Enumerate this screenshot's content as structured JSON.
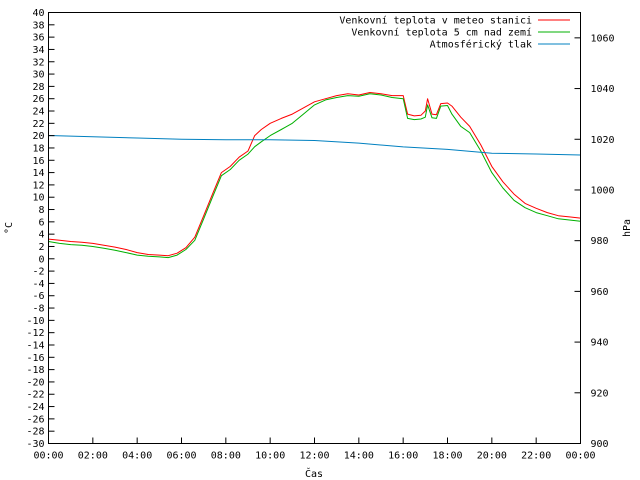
{
  "chart_data": {
    "type": "line",
    "title": "",
    "xlabel": "Čas",
    "ylabel": "°C",
    "y2label": "hPa",
    "xlim": [
      0,
      24
    ],
    "ylim": [
      -30,
      40
    ],
    "y2lim": [
      900,
      1070
    ],
    "grid": false,
    "legend_position": "top-right",
    "x_ticks": [
      {
        "v": 0,
        "label": "00:00"
      },
      {
        "v": 2,
        "label": "02:00"
      },
      {
        "v": 4,
        "label": "04:00"
      },
      {
        "v": 6,
        "label": "06:00"
      },
      {
        "v": 8,
        "label": "08:00"
      },
      {
        "v": 10,
        "label": "10:00"
      },
      {
        "v": 12,
        "label": "12:00"
      },
      {
        "v": 14,
        "label": "14:00"
      },
      {
        "v": 16,
        "label": "16:00"
      },
      {
        "v": 18,
        "label": "18:00"
      },
      {
        "v": 20,
        "label": "20:00"
      },
      {
        "v": 22,
        "label": "22:00"
      },
      {
        "v": 24,
        "label": "00:00"
      }
    ],
    "y_ticks": [
      {
        "v": 40,
        "label": "40"
      },
      {
        "v": 38,
        "label": "38"
      },
      {
        "v": 36,
        "label": "36"
      },
      {
        "v": 34,
        "label": "34"
      },
      {
        "v": 32,
        "label": "32"
      },
      {
        "v": 30,
        "label": "30"
      },
      {
        "v": 28,
        "label": "28"
      },
      {
        "v": 26,
        "label": "26"
      },
      {
        "v": 24,
        "label": "24"
      },
      {
        "v": 22,
        "label": "22"
      },
      {
        "v": 20,
        "label": "20"
      },
      {
        "v": 18,
        "label": "18"
      },
      {
        "v": 16,
        "label": "16"
      },
      {
        "v": 14,
        "label": "14"
      },
      {
        "v": 12,
        "label": "12"
      },
      {
        "v": 10,
        "label": "10"
      },
      {
        "v": 8,
        "label": "8"
      },
      {
        "v": 6,
        "label": "6"
      },
      {
        "v": 4,
        "label": "4"
      },
      {
        "v": 2,
        "label": "2"
      },
      {
        "v": 0,
        "label": "0"
      },
      {
        "v": -2,
        "label": "-2"
      },
      {
        "v": -4,
        "label": "-4"
      },
      {
        "v": -6,
        "label": "-6"
      },
      {
        "v": -8,
        "label": "-8"
      },
      {
        "v": -10,
        "label": "-10"
      },
      {
        "v": -12,
        "label": "-12"
      },
      {
        "v": -14,
        "label": "-14"
      },
      {
        "v": -16,
        "label": "-16"
      },
      {
        "v": -18,
        "label": "-18"
      },
      {
        "v": -20,
        "label": "-20"
      },
      {
        "v": -22,
        "label": "-22"
      },
      {
        "v": -24,
        "label": "-24"
      },
      {
        "v": -26,
        "label": "-26"
      },
      {
        "v": -28,
        "label": "-28"
      },
      {
        "v": -30,
        "label": "-30"
      }
    ],
    "y2_ticks": [
      {
        "v": 1060,
        "label": "1060"
      },
      {
        "v": 1040,
        "label": "1040"
      },
      {
        "v": 1020,
        "label": "1020"
      },
      {
        "v": 1000,
        "label": "1000"
      },
      {
        "v": 980,
        "label": "980"
      },
      {
        "v": 960,
        "label": "960"
      },
      {
        "v": 940,
        "label": "940"
      },
      {
        "v": 920,
        "label": "920"
      },
      {
        "v": 900,
        "label": "900"
      }
    ],
    "series": [
      {
        "name": "Venkovní teplota v meteo stanici",
        "color": "#ff0000",
        "axis": "y",
        "points": [
          [
            0,
            3.2
          ],
          [
            0.5,
            3.0
          ],
          [
            1,
            2.8
          ],
          [
            1.5,
            2.7
          ],
          [
            2,
            2.5
          ],
          [
            2.5,
            2.2
          ],
          [
            3,
            1.9
          ],
          [
            3.5,
            1.5
          ],
          [
            4,
            1.0
          ],
          [
            4.5,
            0.7
          ],
          [
            5,
            0.6
          ],
          [
            5.4,
            0.5
          ],
          [
            5.8,
            0.9
          ],
          [
            6.2,
            1.8
          ],
          [
            6.6,
            3.5
          ],
          [
            7,
            7.0
          ],
          [
            7.4,
            10.5
          ],
          [
            7.8,
            14.0
          ],
          [
            8.2,
            15.0
          ],
          [
            8.6,
            16.5
          ],
          [
            9,
            17.5
          ],
          [
            9.3,
            20.0
          ],
          [
            9.6,
            21.0
          ],
          [
            10,
            22.0
          ],
          [
            10.5,
            22.8
          ],
          [
            11,
            23.5
          ],
          [
            11.5,
            24.5
          ],
          [
            12,
            25.5
          ],
          [
            12.5,
            26.0
          ],
          [
            13,
            26.5
          ],
          [
            13.5,
            26.8
          ],
          [
            14,
            26.6
          ],
          [
            14.5,
            27.0
          ],
          [
            15,
            26.8
          ],
          [
            15.5,
            26.5
          ],
          [
            16,
            26.5
          ],
          [
            16.2,
            23.5
          ],
          [
            16.5,
            23.2
          ],
          [
            16.8,
            23.3
          ],
          [
            17,
            24.0
          ],
          [
            17.1,
            26.0
          ],
          [
            17.3,
            23.5
          ],
          [
            17.5,
            23.4
          ],
          [
            17.7,
            25.2
          ],
          [
            18,
            25.3
          ],
          [
            18.2,
            24.8
          ],
          [
            18.6,
            23.0
          ],
          [
            19,
            21.5
          ],
          [
            19.5,
            18.5
          ],
          [
            20,
            15.0
          ],
          [
            20.5,
            12.5
          ],
          [
            21,
            10.5
          ],
          [
            21.5,
            9.0
          ],
          [
            22,
            8.2
          ],
          [
            22.5,
            7.5
          ],
          [
            23,
            7.0
          ],
          [
            23.5,
            6.8
          ],
          [
            24,
            6.6
          ]
        ]
      },
      {
        "name": "Venkovní teplota 5 cm nad zemí",
        "color": "#00b000",
        "axis": "y",
        "points": [
          [
            0,
            2.8
          ],
          [
            0.5,
            2.5
          ],
          [
            1,
            2.3
          ],
          [
            1.5,
            2.2
          ],
          [
            2,
            2.0
          ],
          [
            2.5,
            1.7
          ],
          [
            3,
            1.4
          ],
          [
            3.5,
            1.0
          ],
          [
            4,
            0.6
          ],
          [
            4.5,
            0.4
          ],
          [
            5,
            0.3
          ],
          [
            5.4,
            0.2
          ],
          [
            5.8,
            0.6
          ],
          [
            6.2,
            1.5
          ],
          [
            6.6,
            3.0
          ],
          [
            7,
            6.5
          ],
          [
            7.4,
            10.0
          ],
          [
            7.8,
            13.5
          ],
          [
            8.2,
            14.5
          ],
          [
            8.6,
            16.0
          ],
          [
            9,
            17.0
          ],
          [
            9.3,
            18.2
          ],
          [
            9.6,
            19.0
          ],
          [
            10,
            20.0
          ],
          [
            10.5,
            21.0
          ],
          [
            11,
            22.0
          ],
          [
            11.5,
            23.5
          ],
          [
            12,
            25.0
          ],
          [
            12.5,
            25.8
          ],
          [
            13,
            26.2
          ],
          [
            13.5,
            26.5
          ],
          [
            14,
            26.4
          ],
          [
            14.5,
            26.8
          ],
          [
            15,
            26.6
          ],
          [
            15.5,
            26.2
          ],
          [
            16,
            26.0
          ],
          [
            16.2,
            22.8
          ],
          [
            16.5,
            22.6
          ],
          [
            16.8,
            22.7
          ],
          [
            17,
            23.0
          ],
          [
            17.1,
            25.0
          ],
          [
            17.3,
            22.9
          ],
          [
            17.5,
            22.8
          ],
          [
            17.7,
            24.8
          ],
          [
            18,
            24.9
          ],
          [
            18.2,
            23.5
          ],
          [
            18.6,
            21.5
          ],
          [
            19,
            20.5
          ],
          [
            19.5,
            17.5
          ],
          [
            20,
            14.0
          ],
          [
            20.5,
            11.5
          ],
          [
            21,
            9.5
          ],
          [
            21.5,
            8.3
          ],
          [
            22,
            7.5
          ],
          [
            22.5,
            7.0
          ],
          [
            23,
            6.5
          ],
          [
            23.5,
            6.3
          ],
          [
            24,
            6.1
          ]
        ]
      },
      {
        "name": "Atmosférický tlak",
        "color": "#0080c0",
        "axis": "y2",
        "points": [
          [
            0,
            1021.5
          ],
          [
            2,
            1021.0
          ],
          [
            4,
            1020.5
          ],
          [
            6,
            1020.0
          ],
          [
            8,
            1019.8
          ],
          [
            10,
            1019.8
          ],
          [
            12,
            1019.5
          ],
          [
            14,
            1018.5
          ],
          [
            16,
            1017.0
          ],
          [
            18,
            1016.0
          ],
          [
            20,
            1014.5
          ],
          [
            22,
            1014.2
          ],
          [
            24,
            1013.8
          ]
        ]
      }
    ]
  }
}
